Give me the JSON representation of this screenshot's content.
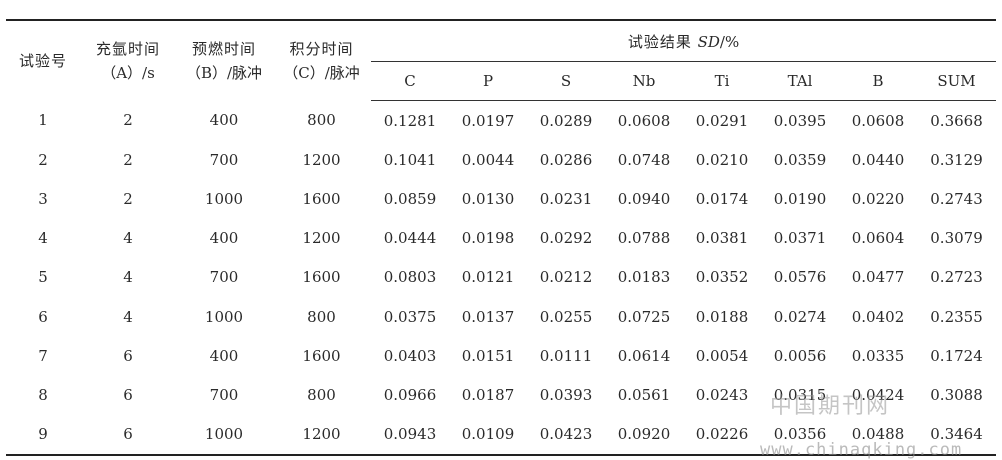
{
  "table": {
    "headers": {
      "trial": "试验号",
      "argon_l1": "充氩时间",
      "argon_l2": "（A）/s",
      "preburn_l1": "预燃时间",
      "preburn_l2": "（B）/脉冲",
      "integ_l1": "积分时间",
      "integ_l2": "（C）/脉冲",
      "results_prefix": "试验结果 ",
      "results_sd": "SD",
      "results_suffix": "/%",
      "elements": [
        "C",
        "P",
        "S",
        "Nb",
        "Ti",
        "TAl",
        "B",
        "SUM"
      ]
    },
    "rows": [
      [
        "1",
        "2",
        "400",
        "800",
        "0.1281",
        "0.0197",
        "0.0289",
        "0.0608",
        "0.0291",
        "0.0395",
        "0.0608",
        "0.3668"
      ],
      [
        "2",
        "2",
        "700",
        "1200",
        "0.1041",
        "0.0044",
        "0.0286",
        "0.0748",
        "0.0210",
        "0.0359",
        "0.0440",
        "0.3129"
      ],
      [
        "3",
        "2",
        "1000",
        "1600",
        "0.0859",
        "0.0130",
        "0.0231",
        "0.0940",
        "0.0174",
        "0.0190",
        "0.0220",
        "0.2743"
      ],
      [
        "4",
        "4",
        "400",
        "1200",
        "0.0444",
        "0.0198",
        "0.0292",
        "0.0788",
        "0.0381",
        "0.0371",
        "0.0604",
        "0.3079"
      ],
      [
        "5",
        "4",
        "700",
        "1600",
        "0.0803",
        "0.0121",
        "0.0212",
        "0.0183",
        "0.0352",
        "0.0576",
        "0.0477",
        "0.2723"
      ],
      [
        "6",
        "4",
        "1000",
        "800",
        "0.0375",
        "0.0137",
        "0.0255",
        "0.0725",
        "0.0188",
        "0.0274",
        "0.0402",
        "0.2355"
      ],
      [
        "7",
        "6",
        "400",
        "1600",
        "0.0403",
        "0.0151",
        "0.0111",
        "0.0614",
        "0.0054",
        "0.0056",
        "0.0335",
        "0.1724"
      ],
      [
        "8",
        "6",
        "700",
        "800",
        "0.0966",
        "0.0187",
        "0.0393",
        "0.0561",
        "0.0243",
        "0.0315",
        "0.0424",
        "0.3088"
      ],
      [
        "9",
        "6",
        "1000",
        "1200",
        "0.0943",
        "0.0109",
        "0.0423",
        "0.0920",
        "0.0226",
        "0.0356",
        "0.0488",
        "0.3464"
      ]
    ]
  },
  "watermark": {
    "cn": "中国期刊网",
    "url": "www.chinaqking.com"
  }
}
